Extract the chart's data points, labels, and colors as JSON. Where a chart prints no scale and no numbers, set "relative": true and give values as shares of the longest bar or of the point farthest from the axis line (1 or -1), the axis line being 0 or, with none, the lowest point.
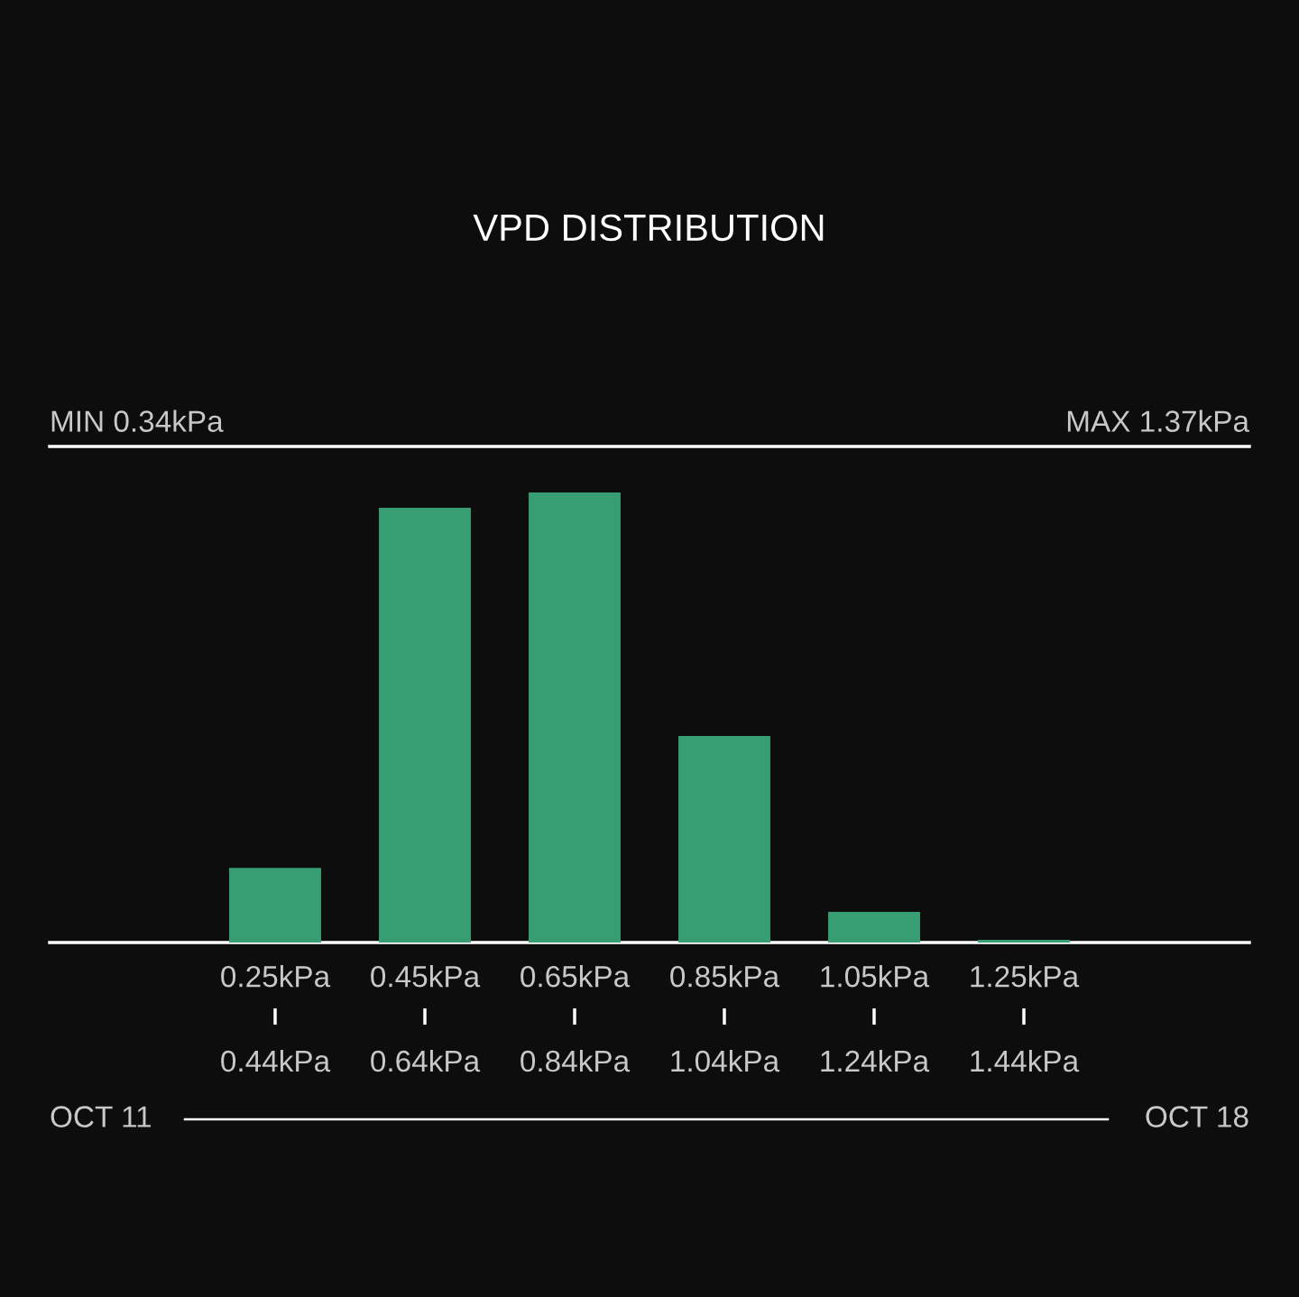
{
  "chart_data": {
    "type": "bar",
    "title": "VPD DISTRIBUTION",
    "categories": [
      "0.25kPa\n0.44kPa",
      "0.45kPa\n0.64kPa",
      "0.65kPa\n0.84kPa",
      "0.85kPa\n1.04kPa",
      "1.05kPa\n1.24kPa",
      "1.25kPa\n1.44kPa"
    ],
    "values": [
      0.166,
      0.966,
      1,
      0.459,
      0.068,
      0.006
    ],
    "color": "#379e74",
    "relative": true,
    "annotations": [
      "MIN 0.34kPa",
      "MAX 1.37kPa",
      "OCT 11",
      "OCT 18"
    ]
  }
}
